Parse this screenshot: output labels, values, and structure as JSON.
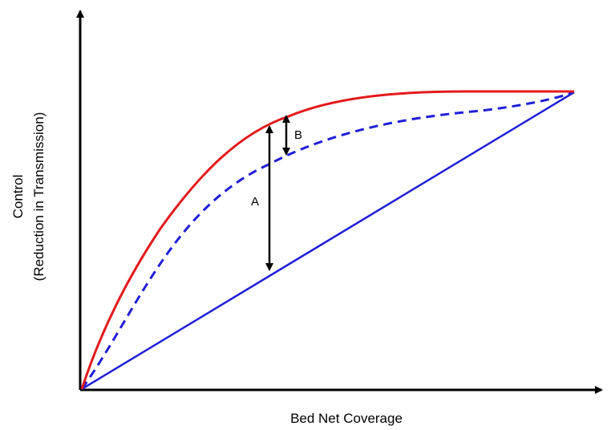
{
  "diagram": {
    "x_axis_label": "Bed Net Coverage",
    "y_axis_label_line1": "Control",
    "y_axis_label_line2": "(Reduction in Transmission)",
    "marker_a_label": "A",
    "marker_b_label": "B"
  },
  "colors": {
    "axes": "#000000",
    "upper_curve": "#e31a1c",
    "dashed_curve": "#1f1fd6",
    "straight_line": "#1f1fd6",
    "markers": "#000000"
  }
}
